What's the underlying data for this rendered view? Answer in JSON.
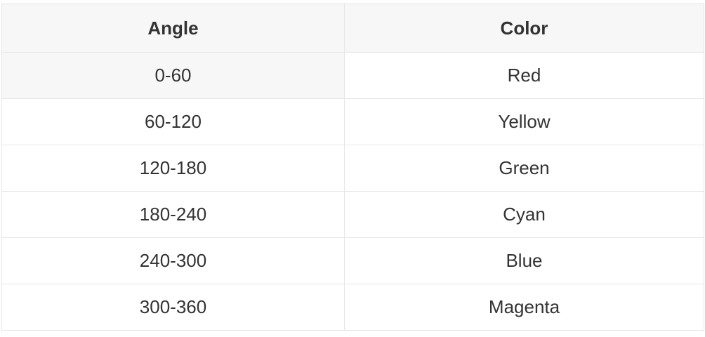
{
  "table": {
    "headers": [
      "Angle",
      "Color"
    ],
    "rows": [
      [
        "0-60",
        "Red"
      ],
      [
        "60-120",
        "Yellow"
      ],
      [
        "120-180",
        "Green"
      ],
      [
        "180-240",
        "Cyan"
      ],
      [
        "240-300",
        "Blue"
      ],
      [
        "300-360",
        "Magenta"
      ]
    ]
  },
  "colors": {
    "text": "#333333",
    "header_bg": "#f7f7f7",
    "border": "#e6e6e6"
  }
}
